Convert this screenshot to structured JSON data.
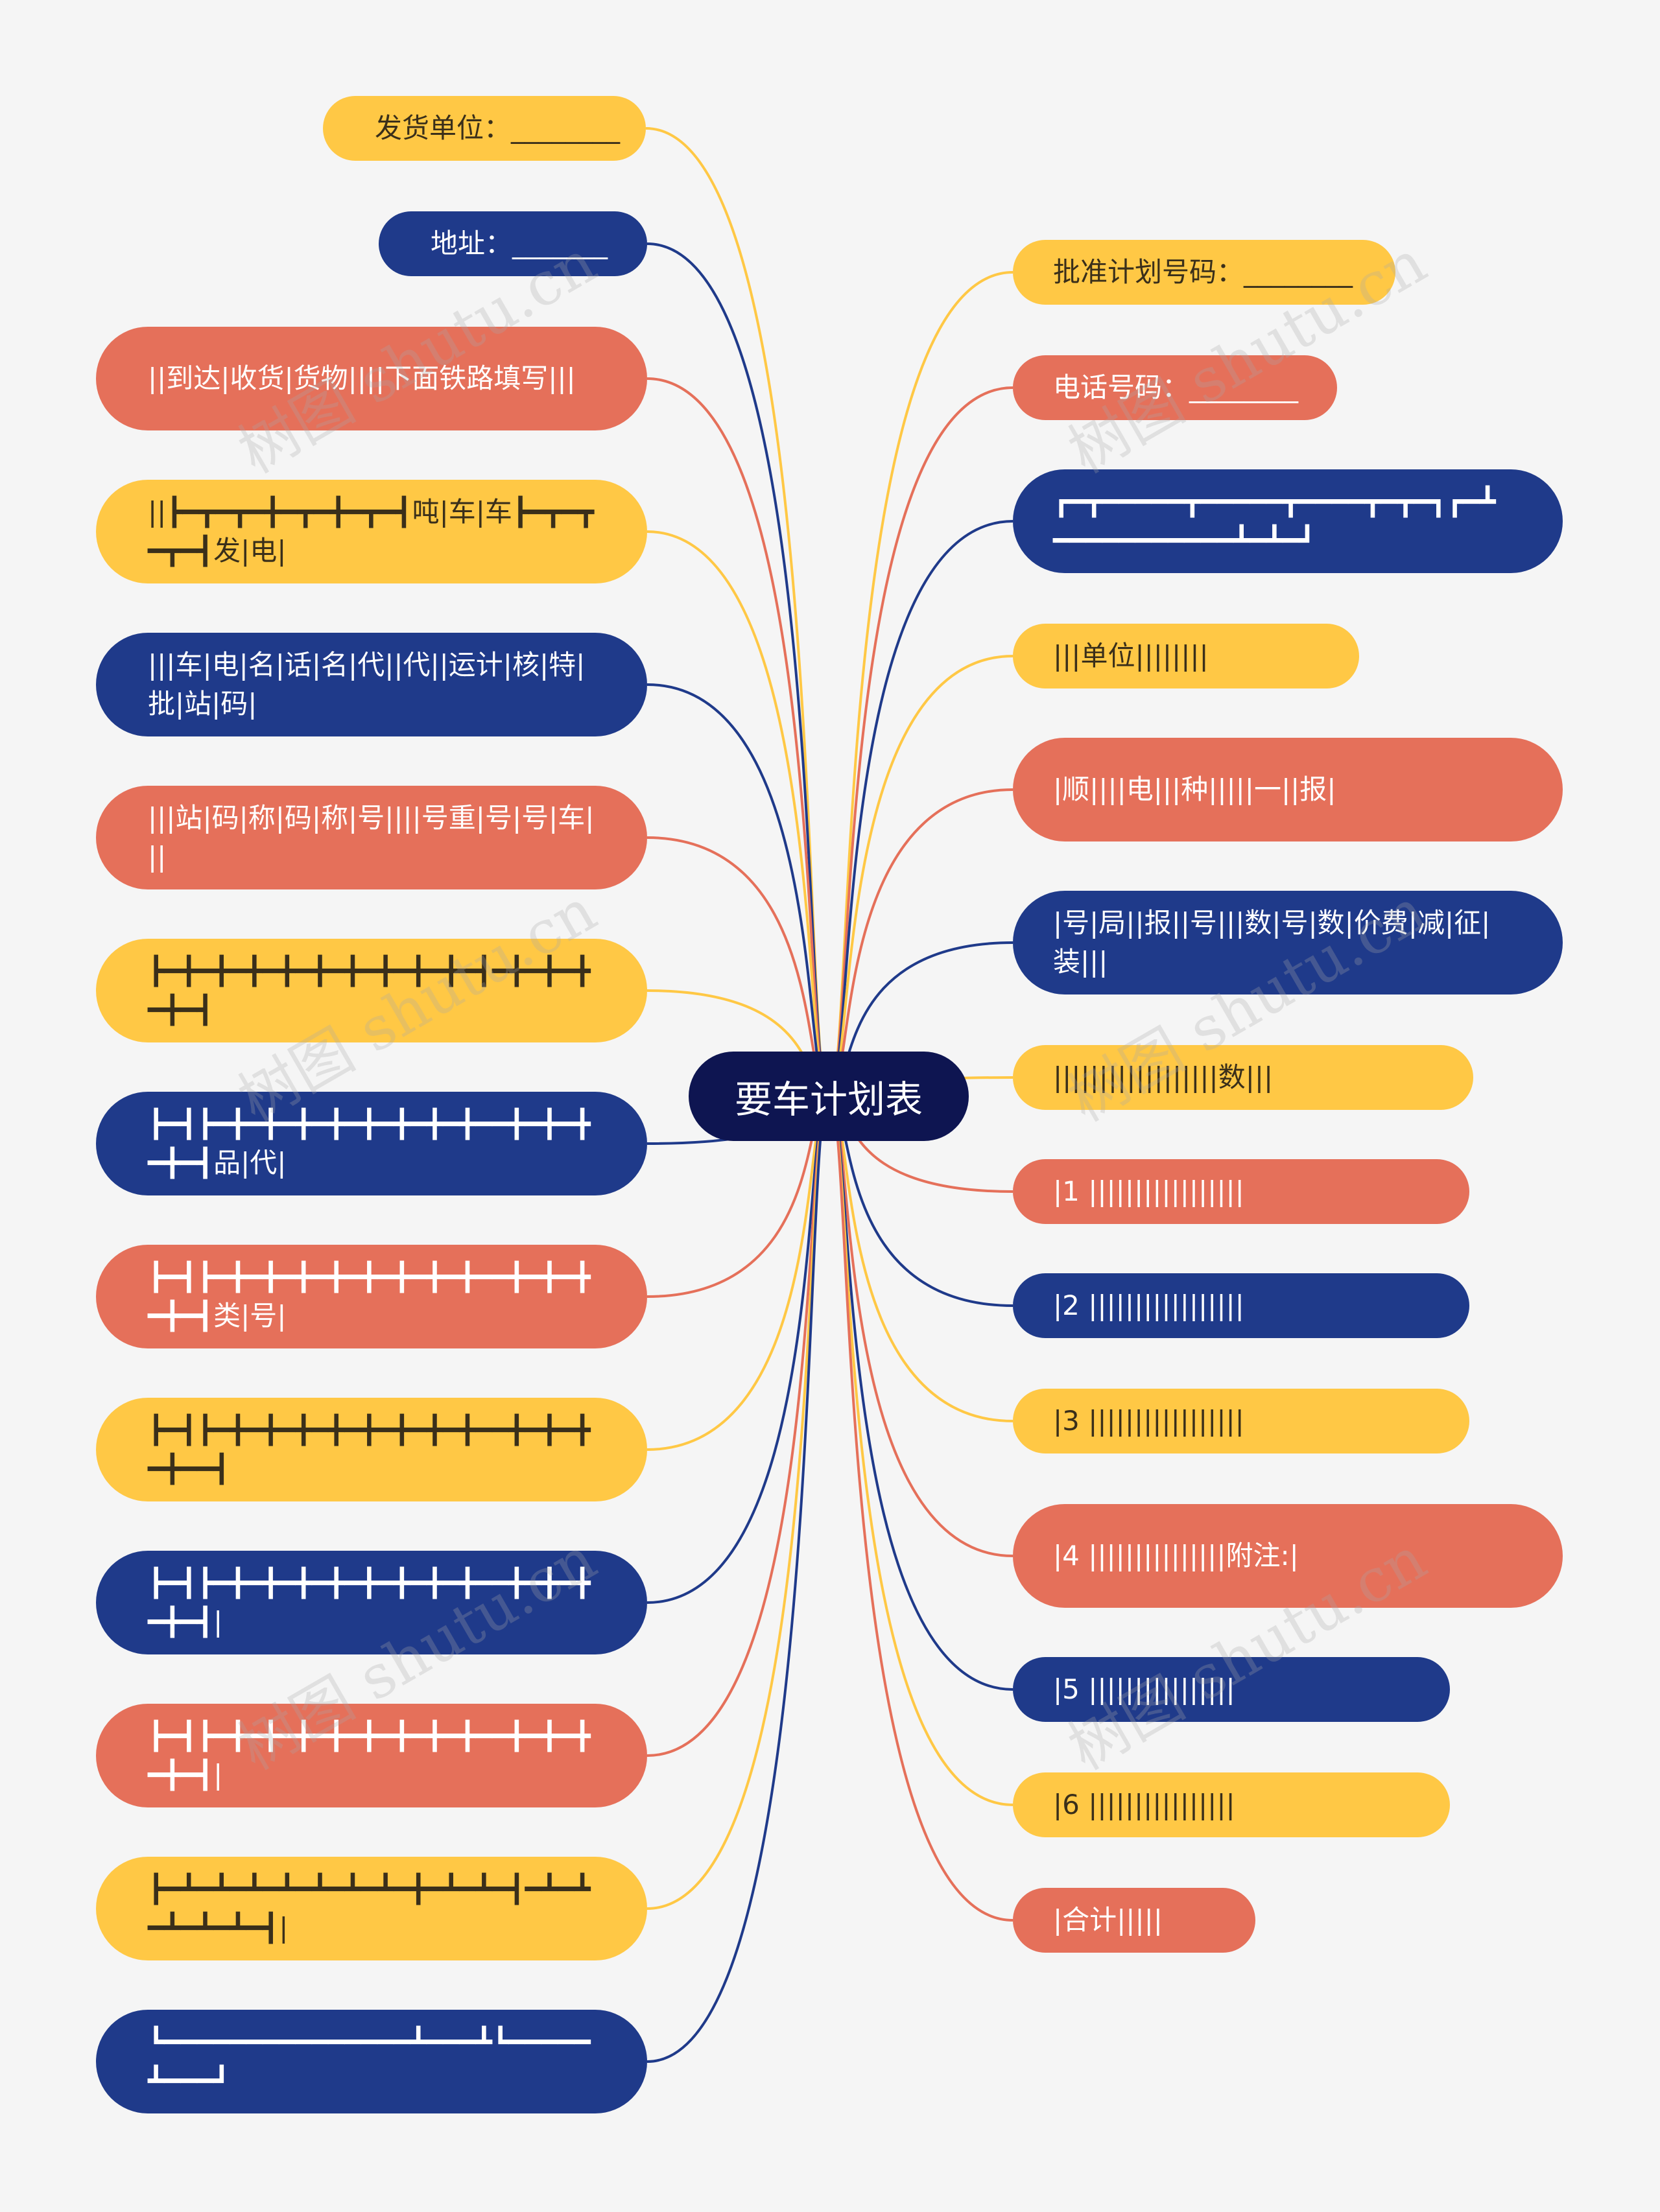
{
  "title": "要车计划表",
  "watermark": "树图 shutu.cn",
  "colors": {
    "yellow": "#ffc845",
    "navy": "#1f3a8a",
    "coral": "#e5705a",
    "center": "#0e1551",
    "background": "#f5f5f5"
  },
  "left_nodes": [
    {
      "text": "发货单位：________",
      "color": "yellow"
    },
    {
      "text": "地址：_______",
      "color": "navy"
    },
    {
      "text": "||到达|收货|货物||||下面铁路填写|||",
      "color": "coral"
    },
    {
      "text": "||┣━┳━┳━╋━┳━╋━┳━┫吨|车|车┣━┳━┳━┳━┫发|电|",
      "color": "yellow"
    },
    {
      "text": "|||车|电|名|话|名|代||代||运计|核|特|批|站|码|",
      "color": "navy"
    },
    {
      "text": "|||站|码|称|码|称|号||||号重|号|号|车|||",
      "color": "coral"
    },
    {
      "text": "┣━╋━╋━╋━╋━╋━╋━╋━╋━╋━┫━╋━╋━╋━╋━┫",
      "color": "yellow"
    },
    {
      "text": "┣━┫┣━╋━╋━╋━╋━╋━╋━╋━╋━━╋━╋━╋━╋━┫品|代|",
      "color": "navy"
    },
    {
      "text": "┣━┫┣━╋━╋━╋━╋━╋━╋━╋━╋━━╋━╋━╋━╋━┫类|号|",
      "color": "coral"
    },
    {
      "text": "┣━┫┣━╋━╋━╋━╋━╋━╋━╋━╋━━╋━╋━╋━╋━━┫",
      "color": "yellow"
    },
    {
      "text": "┣━┫┣━╋━╋━╋━╋━╋━╋━╋━╋━━╋━╋━╋━╋━┫|",
      "color": "navy"
    },
    {
      "text": "┣━┫┣━╋━╋━╋━╋━╋━╋━╋━╋━━╋━╋━╋━╋━┫|",
      "color": "coral"
    },
    {
      "text": "┣━┻━┻━┻━┻━┻━┻━┻━╋━┻━┻━┫━┻━┻━┻━┻━┻━┫|",
      "color": "yellow"
    },
    {
      "text": "┗━━━━━━━━━━━━━━━┻━━━┻┗━━━━━┻━━━┛",
      "color": "navy"
    }
  ],
  "right_nodes": [
    {
      "text": "批准计划号码：________",
      "color": "yellow"
    },
    {
      "text": "电话号码：________",
      "color": "coral"
    },
    {
      "text": "┏━┳━━━━━┳━━━━━┳━━━━┳━┳━┓┏━┻━━━━━━━━━━━┻━┻━┛",
      "color": "navy"
    },
    {
      "text": "|||单位||||||||",
      "color": "yellow"
    },
    {
      "text": "|顺||||电|||种|||||一||报|",
      "color": "coral"
    },
    {
      "text": "|号|局||报||号|||数|号|数|价费|减|征|装|||",
      "color": "navy"
    },
    {
      "text": "||||||||||||||||||数|||",
      "color": "yellow"
    },
    {
      "text": "|1 |||||||||||||||||",
      "color": "coral"
    },
    {
      "text": "|2 |||||||||||||||||",
      "color": "navy"
    },
    {
      "text": "|3 |||||||||||||||||",
      "color": "yellow"
    },
    {
      "text": "|4 |||||||||||||||附注:|",
      "color": "coral"
    },
    {
      "text": "|5 ||||||||||||||||",
      "color": "navy"
    },
    {
      "text": "|6 ||||||||||||||||",
      "color": "yellow"
    },
    {
      "text": "|合计|||||",
      "color": "coral"
    }
  ]
}
